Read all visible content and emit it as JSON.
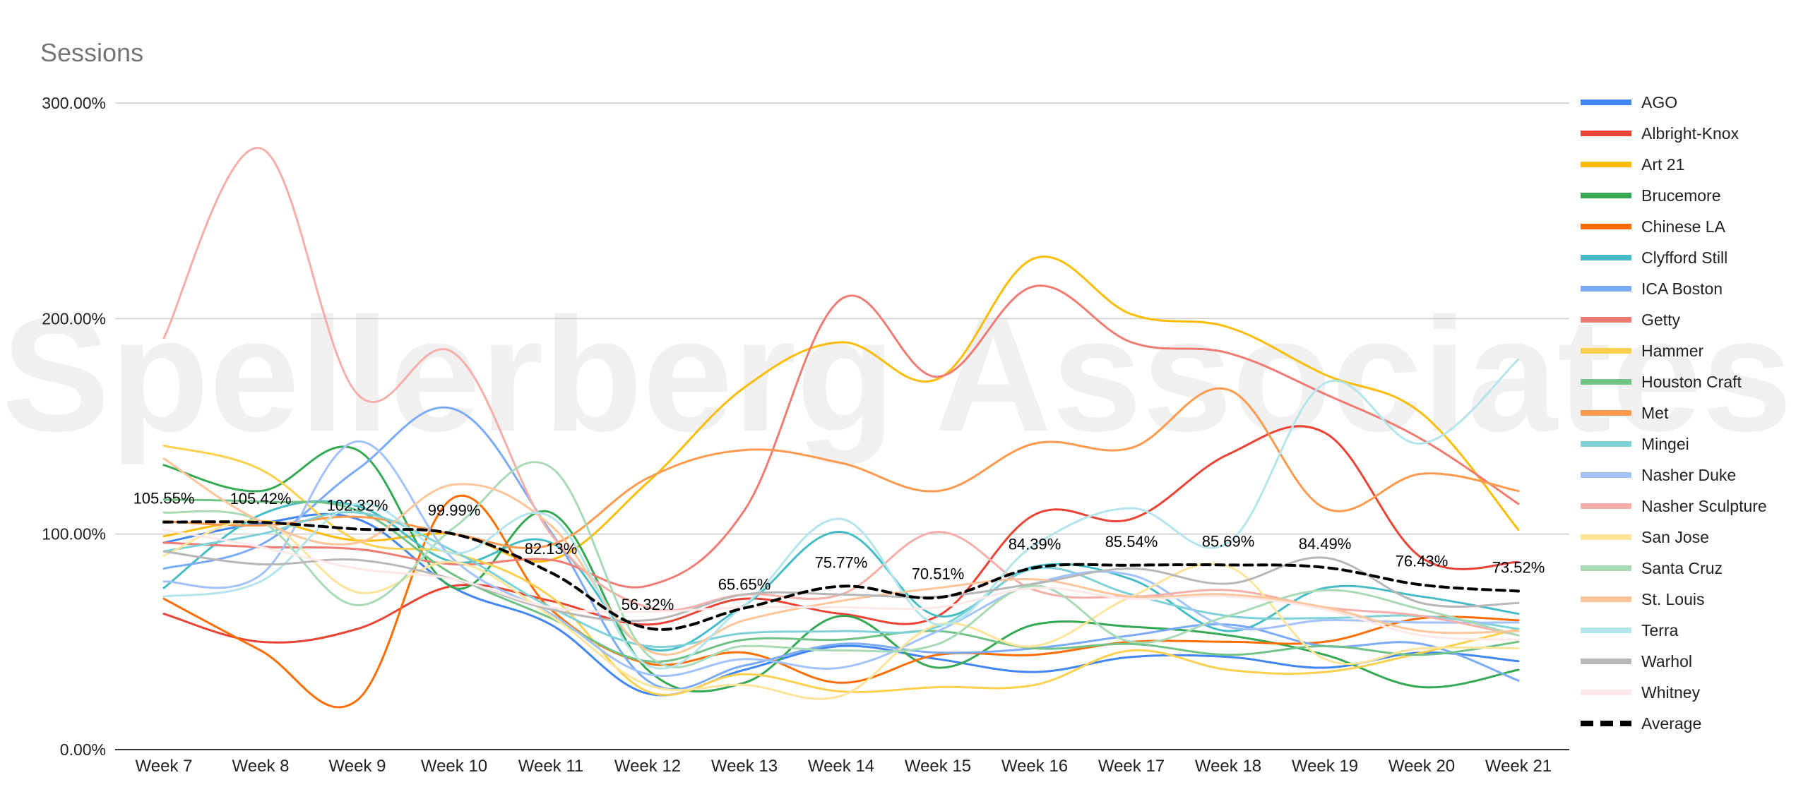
{
  "watermark": "Spellerberg Associates",
  "chart_data": {
    "type": "line",
    "title": "Sessions",
    "xlabel": "",
    "ylabel": "",
    "ylim": [
      0,
      3
    ],
    "yticks": [
      0,
      1,
      2,
      3
    ],
    "ytick_labels": [
      "0.00%",
      "100.00%",
      "200.00%",
      "300.00%"
    ],
    "grid": true,
    "legend_position": "right",
    "categories": [
      "Week 7",
      "Week 8",
      "Week 9",
      "Week 10",
      "Week 11",
      "Week 12",
      "Week 13",
      "Week 14",
      "Week 15",
      "Week 16",
      "Week 17",
      "Week 18",
      "Week 19",
      "Week 20",
      "Week 21"
    ],
    "series": [
      {
        "name": "AGO",
        "color": "#4285f4",
        "values": [
          0.96,
          1.05,
          1.07,
          0.75,
          0.58,
          0.26,
          0.37,
          0.48,
          0.42,
          0.36,
          0.43,
          0.43,
          0.38,
          0.45,
          0.41
        ]
      },
      {
        "name": "Albright-Knox",
        "color": "#ea4335",
        "values": [
          0.63,
          0.5,
          0.56,
          0.76,
          0.69,
          0.58,
          0.7,
          0.63,
          0.62,
          1.09,
          1.07,
          1.37,
          1.47,
          0.89,
          0.87
        ]
      },
      {
        "name": "Art 21",
        "color": "#fbbc04",
        "values": [
          0.99,
          1.06,
          0.97,
          1.0,
          0.88,
          1.24,
          1.68,
          1.89,
          1.72,
          2.28,
          2.02,
          1.96,
          1.74,
          1.56,
          1.02
        ]
      },
      {
        "name": "Brucemore",
        "color": "#34a853",
        "values": [
          1.32,
          1.2,
          1.39,
          0.75,
          1.1,
          0.37,
          0.31,
          0.62,
          0.38,
          0.58,
          0.57,
          0.53,
          0.44,
          0.29,
          0.37
        ]
      },
      {
        "name": "Chinese LA",
        "color": "#ff6d01",
        "values": [
          0.7,
          0.46,
          0.23,
          1.17,
          0.65,
          0.4,
          0.45,
          0.31,
          0.44,
          0.44,
          0.5,
          0.5,
          0.5,
          0.61,
          0.6
        ]
      },
      {
        "name": "Clyfford Still",
        "color": "#46bdc6",
        "values": [
          0.75,
          1.09,
          1.13,
          0.87,
          0.96,
          0.47,
          0.67,
          1.01,
          0.62,
          0.85,
          0.79,
          0.55,
          0.75,
          0.71,
          0.63
        ]
      },
      {
        "name": "ICA Boston",
        "color": "#7baaf7",
        "values": [
          0.84,
          0.95,
          1.3,
          1.58,
          1.01,
          0.32,
          0.39,
          0.49,
          0.45,
          0.47,
          0.53,
          0.58,
          0.48,
          0.49,
          0.32
        ]
      },
      {
        "name": "Getty",
        "color": "#f07b72",
        "values": [
          0.96,
          0.94,
          0.93,
          0.86,
          0.88,
          0.76,
          1.11,
          2.09,
          1.73,
          2.15,
          1.89,
          1.84,
          1.65,
          1.44,
          1.14
        ]
      },
      {
        "name": "Hammer",
        "color": "#fcd04f",
        "values": [
          1.41,
          1.3,
          0.97,
          0.91,
          0.71,
          0.27,
          0.35,
          0.27,
          0.29,
          0.3,
          0.46,
          0.37,
          0.36,
          0.45,
          0.56
        ]
      },
      {
        "name": "Houston Craft",
        "color": "#71c287",
        "values": [
          1.16,
          1.15,
          1.11,
          0.81,
          0.61,
          0.41,
          0.51,
          0.51,
          0.55,
          0.47,
          0.49,
          0.44,
          0.48,
          0.44,
          0.5
        ]
      },
      {
        "name": "Met",
        "color": "#ff994d",
        "values": [
          1.06,
          1.04,
          1.08,
          1.0,
          0.95,
          1.26,
          1.39,
          1.33,
          1.2,
          1.42,
          1.4,
          1.67,
          1.12,
          1.28,
          1.2
        ]
      },
      {
        "name": "Mingei",
        "color": "#7ed1d7",
        "values": [
          0.92,
          1.0,
          1.1,
          0.92,
          0.66,
          0.48,
          0.54,
          0.55,
          0.57,
          0.84,
          0.72,
          0.62,
          0.61,
          0.62,
          0.56
        ]
      },
      {
        "name": "Nasher Duke",
        "color": "#a1c2fa",
        "values": [
          0.78,
          0.81,
          1.43,
          0.88,
          0.63,
          0.35,
          0.42,
          0.38,
          0.55,
          0.77,
          0.81,
          0.57,
          0.6,
          0.59,
          0.59
        ]
      },
      {
        "name": "Nasher Sculpture",
        "color": "#f6aea9",
        "values": [
          1.91,
          2.79,
          1.65,
          1.84,
          1.0,
          0.66,
          0.72,
          0.72,
          1.01,
          0.74,
          0.71,
          0.74,
          0.66,
          0.62,
          0.53
        ]
      },
      {
        "name": "San Jose",
        "color": "#fde49b",
        "values": [
          0.9,
          1.06,
          0.73,
          0.87,
          0.62,
          0.3,
          0.3,
          0.25,
          0.58,
          0.48,
          0.71,
          0.85,
          0.42,
          0.47,
          0.47
        ]
      },
      {
        "name": "Santa Cruz",
        "color": "#a8dab5",
        "values": [
          1.1,
          1.06,
          0.67,
          1.03,
          1.31,
          0.44,
          0.48,
          0.46,
          0.49,
          0.76,
          0.5,
          0.62,
          0.74,
          0.65,
          0.53
        ]
      },
      {
        "name": "St. Louis",
        "color": "#ffc599",
        "values": [
          1.35,
          1.06,
          0.96,
          1.23,
          1.04,
          0.46,
          0.6,
          0.69,
          0.75,
          0.79,
          0.71,
          0.72,
          0.66,
          0.55,
          0.55
        ]
      },
      {
        "name": "Terra",
        "color": "#b3e5ea",
        "values": [
          0.71,
          0.78,
          1.14,
          0.91,
          1.08,
          0.39,
          0.67,
          1.07,
          0.58,
          0.95,
          1.12,
          0.96,
          1.7,
          1.42,
          1.81
        ]
      },
      {
        "name": "Warhol",
        "color": "#b7b7b7",
        "values": [
          0.92,
          0.86,
          0.88,
          0.79,
          0.65,
          0.6,
          0.72,
          0.72,
          0.71,
          0.77,
          0.84,
          0.77,
          0.89,
          0.68,
          0.68
        ]
      },
      {
        "name": "Whitney",
        "color": "#fce8e6",
        "values": [
          1.02,
          0.94,
          0.84,
          0.79,
          0.66,
          0.64,
          0.66,
          0.66,
          0.66,
          0.75,
          0.7,
          0.71,
          0.65,
          0.53,
          0.51
        ]
      },
      {
        "name": "Average",
        "color": "#000000",
        "dashed": true,
        "values": [
          1.0555,
          1.0542,
          1.0232,
          0.9999,
          0.8213,
          0.5632,
          0.6565,
          0.7577,
          0.7051,
          0.8439,
          0.8554,
          0.8569,
          0.8449,
          0.7643,
          0.7352
        ]
      }
    ],
    "average_labels": [
      "105.55%",
      "105.42%",
      "102.32%",
      "99.99%",
      "82.13%",
      "56.32%",
      "65.65%",
      "75.77%",
      "70.51%",
      "84.39%",
      "85.54%",
      "85.69%",
      "84.49%",
      "76.43%",
      "73.52%"
    ]
  }
}
